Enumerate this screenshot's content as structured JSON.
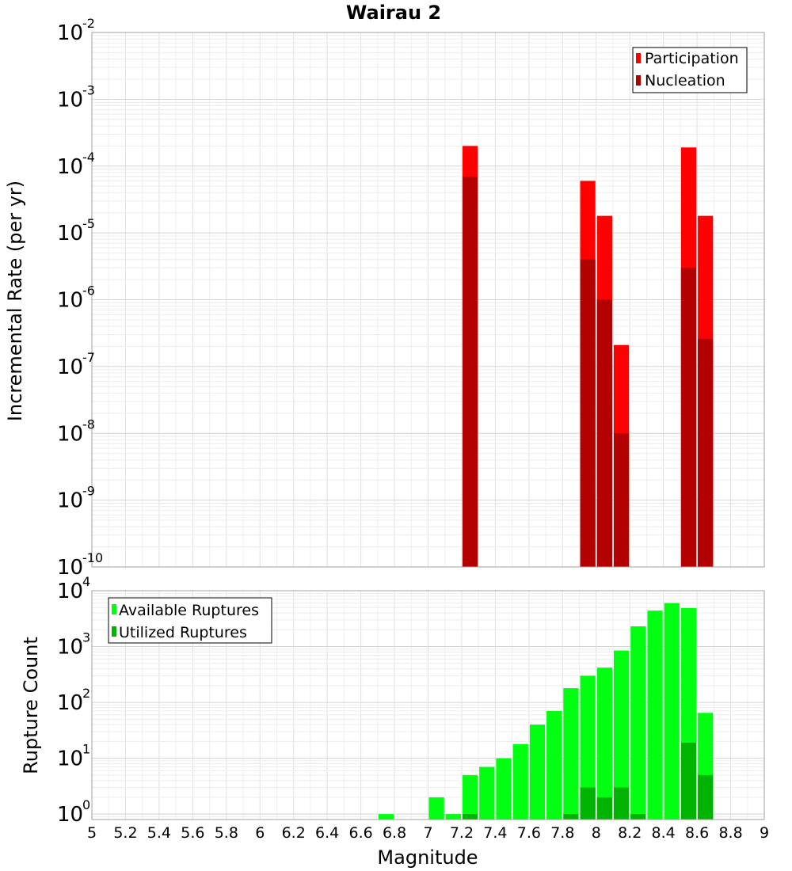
{
  "title": "Wairau 2",
  "chart_data": [
    {
      "type": "bar",
      "name": "rate-panel",
      "ylabel": "Incremental Rate (per yr)",
      "yscale": "log",
      "ylim": [
        1e-10,
        0.01
      ],
      "xlim": [
        5,
        9
      ],
      "grid": true,
      "legend_position": "top-right",
      "ytick_labels": [
        {
          "base": "10",
          "exp": "-10"
        },
        {
          "base": "10",
          "exp": "-9"
        },
        {
          "base": "10",
          "exp": "-8"
        },
        {
          "base": "10",
          "exp": "-7"
        },
        {
          "base": "10",
          "exp": "-6"
        },
        {
          "base": "10",
          "exp": "-5"
        },
        {
          "base": "10",
          "exp": "-4"
        },
        {
          "base": "10",
          "exp": "-3"
        },
        {
          "base": "10",
          "exp": "-2"
        }
      ],
      "series": [
        {
          "name": "Participation",
          "color": "#ff0000",
          "points": [
            {
              "x": 7.25,
              "y": 0.0002
            },
            {
              "x": 7.95,
              "y": 6e-05
            },
            {
              "x": 8.05,
              "y": 1.8e-05
            },
            {
              "x": 8.15,
              "y": 2.1e-07
            },
            {
              "x": 8.55,
              "y": 0.00019
            },
            {
              "x": 8.65,
              "y": 1.8e-05
            }
          ]
        },
        {
          "name": "Nucleation",
          "color": "#b30000",
          "points": [
            {
              "x": 7.25,
              "y": 7e-05
            },
            {
              "x": 7.95,
              "y": 4e-06
            },
            {
              "x": 8.05,
              "y": 1e-06
            },
            {
              "x": 8.15,
              "y": 1e-08
            },
            {
              "x": 8.55,
              "y": 3e-06
            },
            {
              "x": 8.65,
              "y": 2.6e-07
            }
          ]
        }
      ]
    },
    {
      "type": "bar",
      "name": "count-panel",
      "ylabel": "Rupture Count",
      "xlabel": "Magnitude",
      "yscale": "log",
      "ylim": [
        0.8,
        10000
      ],
      "xlim": [
        5,
        9
      ],
      "grid": true,
      "legend_position": "top-left",
      "xtick_labels": [
        "5",
        "5.2",
        "5.4",
        "5.6",
        "5.8",
        "6",
        "6.2",
        "6.4",
        "6.6",
        "6.8",
        "7",
        "7.2",
        "7.4",
        "7.6",
        "7.8",
        "8",
        "8.2",
        "8.4",
        "8.6",
        "8.8",
        "9"
      ],
      "ytick_labels": [
        {
          "base": "10",
          "exp": "0"
        },
        {
          "base": "10",
          "exp": "1"
        },
        {
          "base": "10",
          "exp": "2"
        },
        {
          "base": "10",
          "exp": "3"
        },
        {
          "base": "10",
          "exp": "4"
        }
      ],
      "series": [
        {
          "name": "Available Ruptures",
          "color": "#00ff11",
          "points": [
            {
              "x": 6.75,
              "y": 1
            },
            {
              "x": 7.05,
              "y": 2
            },
            {
              "x": 7.15,
              "y": 1
            },
            {
              "x": 7.25,
              "y": 5
            },
            {
              "x": 7.35,
              "y": 7
            },
            {
              "x": 7.45,
              "y": 10
            },
            {
              "x": 7.55,
              "y": 18
            },
            {
              "x": 7.65,
              "y": 40
            },
            {
              "x": 7.75,
              "y": 70
            },
            {
              "x": 7.85,
              "y": 180
            },
            {
              "x": 7.95,
              "y": 300
            },
            {
              "x": 8.05,
              "y": 420
            },
            {
              "x": 8.15,
              "y": 850
            },
            {
              "x": 8.25,
              "y": 2300
            },
            {
              "x": 8.35,
              "y": 4400
            },
            {
              "x": 8.45,
              "y": 6000
            },
            {
              "x": 8.55,
              "y": 4900
            },
            {
              "x": 8.65,
              "y": 65
            }
          ]
        },
        {
          "name": "Utilized Ruptures",
          "color": "#00b300",
          "points": [
            {
              "x": 7.25,
              "y": 1
            },
            {
              "x": 7.85,
              "y": 1
            },
            {
              "x": 7.95,
              "y": 3
            },
            {
              "x": 8.05,
              "y": 2
            },
            {
              "x": 8.15,
              "y": 3
            },
            {
              "x": 8.25,
              "y": 1
            },
            {
              "x": 8.55,
              "y": 19
            },
            {
              "x": 8.65,
              "y": 5
            }
          ]
        }
      ]
    }
  ]
}
